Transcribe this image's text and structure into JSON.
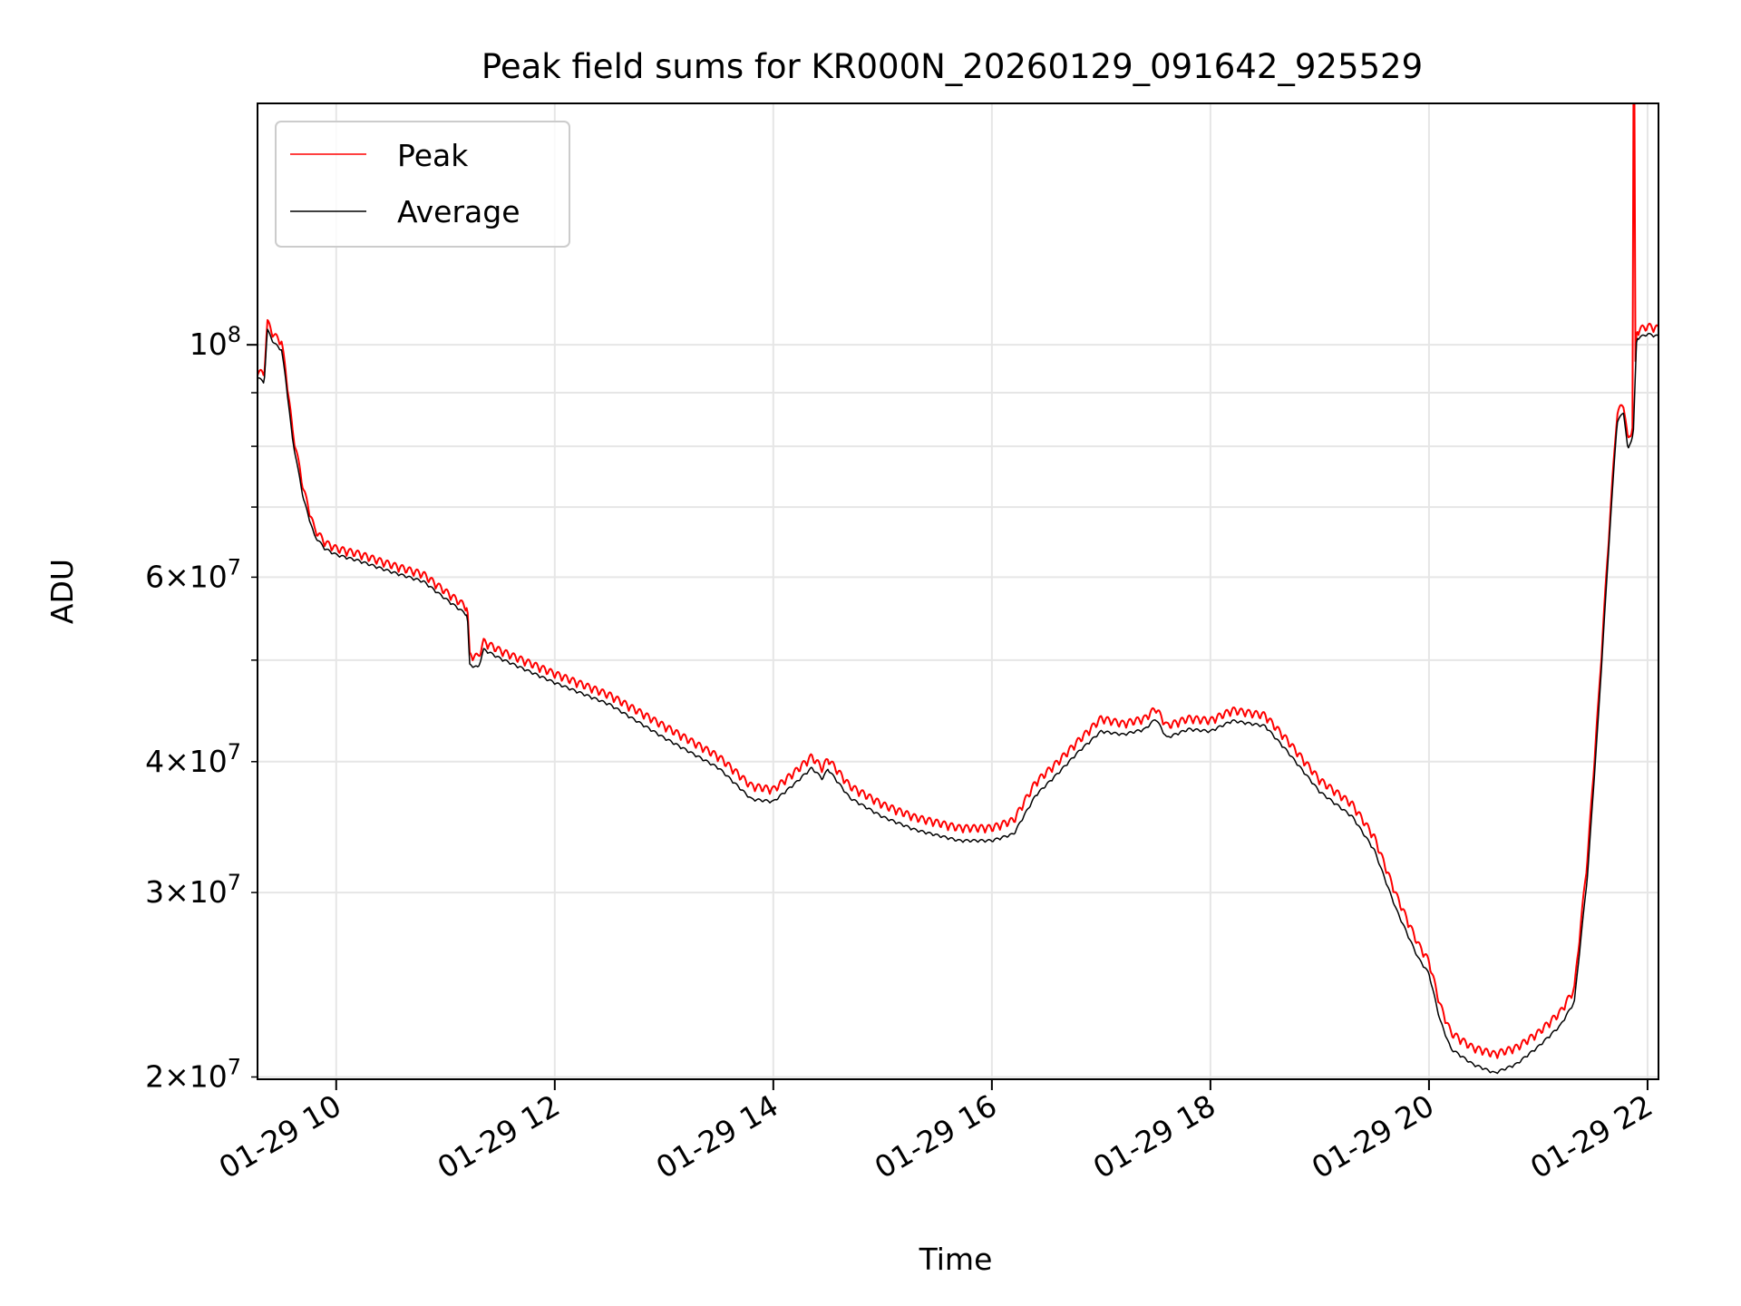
{
  "chart_data": {
    "type": "line",
    "title": "Peak field sums for KR000N_20260129_091642_925529",
    "xlabel": "Time",
    "ylabel": "ADU",
    "yscale": "log",
    "xlim": [
      9.28,
      22.1
    ],
    "ylim": [
      19900000,
      170000000
    ],
    "grid": true,
    "legend_position": "top-left",
    "x_unit": "hours (2026-01-29)",
    "x_ticks": [
      {
        "value": 10,
        "label": "01-29 10"
      },
      {
        "value": 12,
        "label": "01-29 12"
      },
      {
        "value": 14,
        "label": "01-29 14"
      },
      {
        "value": 16,
        "label": "01-29 16"
      },
      {
        "value": 18,
        "label": "01-29 18"
      },
      {
        "value": 20,
        "label": "01-29 20"
      },
      {
        "value": 22,
        "label": "01-29 22"
      }
    ],
    "y_major_ticks": [
      {
        "value": 100000000,
        "base": "10",
        "exp": "8"
      }
    ],
    "y_minor_ticks": [
      {
        "value": 20000000,
        "mant": "2",
        "base": "10",
        "exp": "7"
      },
      {
        "value": 30000000,
        "mant": "3",
        "base": "10",
        "exp": "7"
      },
      {
        "value": 40000000,
        "mant": "4",
        "base": "10",
        "exp": "7"
      },
      {
        "value": 60000000,
        "mant": "6",
        "base": "10",
        "exp": "7"
      }
    ],
    "y_unlabeled_minor_ticks": [
      50000000,
      70000000,
      80000000,
      90000000
    ],
    "series": [
      {
        "name": "Peak",
        "color": "#ff0000",
        "spikes": [
          {
            "x": 21.88,
            "y": 170000000
          }
        ],
        "points": [
          [
            9.28,
            93500000
          ],
          [
            9.34,
            92500000
          ],
          [
            9.37,
            104000000
          ],
          [
            9.43,
            101000000
          ],
          [
            9.5,
            99500000
          ],
          [
            9.54,
            93000000
          ],
          [
            9.6,
            82000000
          ],
          [
            9.7,
            72000000
          ],
          [
            9.8,
            66000000
          ],
          [
            9.9,
            64000000
          ],
          [
            10.0,
            63200000
          ],
          [
            10.2,
            62500000
          ],
          [
            10.5,
            61000000
          ],
          [
            10.8,
            59700000
          ],
          [
            11.0,
            57500000
          ],
          [
            11.2,
            55500000
          ],
          [
            11.22,
            50000000
          ],
          [
            11.3,
            49800000
          ],
          [
            11.35,
            51500000
          ],
          [
            11.5,
            50500000
          ],
          [
            12.0,
            48000000
          ],
          [
            12.5,
            45800000
          ],
          [
            13.0,
            42800000
          ],
          [
            13.5,
            40000000
          ],
          [
            13.8,
            37500000
          ],
          [
            14.0,
            37200000
          ],
          [
            14.2,
            38700000
          ],
          [
            14.35,
            40000000
          ],
          [
            14.45,
            39000000
          ],
          [
            14.5,
            39800000
          ],
          [
            14.7,
            37500000
          ],
          [
            15.0,
            36000000
          ],
          [
            15.3,
            35000000
          ],
          [
            15.7,
            34200000
          ],
          [
            16.0,
            34200000
          ],
          [
            16.2,
            34800000
          ],
          [
            16.4,
            37800000
          ],
          [
            16.6,
            39500000
          ],
          [
            16.8,
            41500000
          ],
          [
            17.0,
            43500000
          ],
          [
            17.2,
            43000000
          ],
          [
            17.4,
            43500000
          ],
          [
            17.5,
            44500000
          ],
          [
            17.6,
            42800000
          ],
          [
            17.8,
            43500000
          ],
          [
            18.0,
            43300000
          ],
          [
            18.2,
            44300000
          ],
          [
            18.5,
            43800000
          ],
          [
            18.7,
            41500000
          ],
          [
            19.0,
            38000000
          ],
          [
            19.3,
            36000000
          ],
          [
            19.5,
            33500000
          ],
          [
            19.7,
            29500000
          ],
          [
            19.9,
            26500000
          ],
          [
            20.0,
            25500000
          ],
          [
            20.1,
            23200000
          ],
          [
            20.2,
            21800000
          ],
          [
            20.4,
            21100000
          ],
          [
            20.6,
            20800000
          ],
          [
            20.8,
            21100000
          ],
          [
            21.0,
            21800000
          ],
          [
            21.2,
            22800000
          ],
          [
            21.33,
            24000000
          ],
          [
            21.45,
            32000000
          ],
          [
            21.55,
            45000000
          ],
          [
            21.65,
            66000000
          ],
          [
            21.72,
            85000000
          ],
          [
            21.78,
            87000000
          ],
          [
            21.82,
            80000000
          ],
          [
            21.87,
            83000000
          ],
          [
            21.9,
            102000000
          ],
          [
            22.0,
            103000000
          ],
          [
            22.1,
            102500000
          ]
        ]
      },
      {
        "name": "Average",
        "color": "#000000",
        "points": [
          [
            9.28,
            93000000
          ],
          [
            9.34,
            91500000
          ],
          [
            9.37,
            103000000
          ],
          [
            9.43,
            100000000
          ],
          [
            9.5,
            98500000
          ],
          [
            9.54,
            92000000
          ],
          [
            9.6,
            81000000
          ],
          [
            9.7,
            71000000
          ],
          [
            9.8,
            65500000
          ],
          [
            9.9,
            63600000
          ],
          [
            10.0,
            62800000
          ],
          [
            10.2,
            62000000
          ],
          [
            10.5,
            60500000
          ],
          [
            10.8,
            59200000
          ],
          [
            11.0,
            57000000
          ],
          [
            11.2,
            55000000
          ],
          [
            11.22,
            49300000
          ],
          [
            11.3,
            49000000
          ],
          [
            11.35,
            51000000
          ],
          [
            11.5,
            50000000
          ],
          [
            12.0,
            47400000
          ],
          [
            12.5,
            45200000
          ],
          [
            13.0,
            42000000
          ],
          [
            13.5,
            39300000
          ],
          [
            13.8,
            36700000
          ],
          [
            14.0,
            36500000
          ],
          [
            14.2,
            38000000
          ],
          [
            14.35,
            39300000
          ],
          [
            14.45,
            38400000
          ],
          [
            14.5,
            39200000
          ],
          [
            14.7,
            36800000
          ],
          [
            15.0,
            35300000
          ],
          [
            15.3,
            34300000
          ],
          [
            15.7,
            33500000
          ],
          [
            16.0,
            33500000
          ],
          [
            16.2,
            34000000
          ],
          [
            16.4,
            37000000
          ],
          [
            16.6,
            38800000
          ],
          [
            16.8,
            40800000
          ],
          [
            17.0,
            42600000
          ],
          [
            17.2,
            42300000
          ],
          [
            17.4,
            42800000
          ],
          [
            17.5,
            43800000
          ],
          [
            17.6,
            42000000
          ],
          [
            17.8,
            42800000
          ],
          [
            18.0,
            42600000
          ],
          [
            18.2,
            43600000
          ],
          [
            18.5,
            43100000
          ],
          [
            18.7,
            40800000
          ],
          [
            19.0,
            37300000
          ],
          [
            19.3,
            35300000
          ],
          [
            19.5,
            32800000
          ],
          [
            19.7,
            28800000
          ],
          [
            19.9,
            25900000
          ],
          [
            20.0,
            25000000
          ],
          [
            20.1,
            22600000
          ],
          [
            20.2,
            21200000
          ],
          [
            20.4,
            20500000
          ],
          [
            20.6,
            20100000
          ],
          [
            20.8,
            20500000
          ],
          [
            21.0,
            21300000
          ],
          [
            21.2,
            22300000
          ],
          [
            21.33,
            23500000
          ],
          [
            21.45,
            31000000
          ],
          [
            21.55,
            44000000
          ],
          [
            21.65,
            65000000
          ],
          [
            21.72,
            84000000
          ],
          [
            21.78,
            86000000
          ],
          [
            21.82,
            79000000
          ],
          [
            21.87,
            82000000
          ],
          [
            21.9,
            101000000
          ],
          [
            22.0,
            102000000
          ],
          [
            22.1,
            101500000
          ]
        ]
      }
    ]
  }
}
